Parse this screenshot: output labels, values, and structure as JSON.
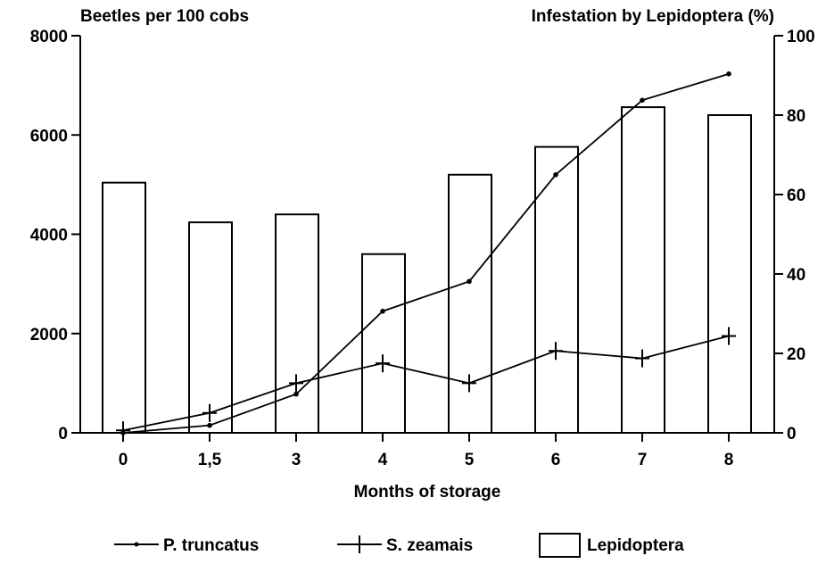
{
  "chart_data": {
    "type": "bar+line",
    "categories": [
      "0",
      "1,5",
      "3",
      "4",
      "5",
      "6",
      "7",
      "8"
    ],
    "xlabel": "Months of storage",
    "ylabel_left": "Beetles per 100 cobs",
    "ylabel_right": "Infestation by Lepidoptera (%)",
    "ylim_left": [
      0,
      8000
    ],
    "ylim_right": [
      0,
      100
    ],
    "yticks_left": [
      "0",
      "2000",
      "4000",
      "6000",
      "8000"
    ],
    "yticks_right": [
      "0",
      "20",
      "40",
      "60",
      "80",
      "100"
    ],
    "grid": false,
    "legend_position": "bottom",
    "series": [
      {
        "name": "P. truncatus",
        "type": "line",
        "axis": "left",
        "marker": "dot",
        "values": [
          0,
          150,
          780,
          2450,
          3050,
          5200,
          6700,
          7230
        ]
      },
      {
        "name": "S. zeamais",
        "type": "line",
        "axis": "left",
        "marker": "plus",
        "values": [
          50,
          400,
          1000,
          1400,
          1000,
          1650,
          1500,
          1950
        ]
      },
      {
        "name": "Lepidoptera",
        "type": "bar",
        "axis": "right",
        "values": [
          63,
          53,
          55,
          45,
          65,
          72,
          82,
          80
        ]
      }
    ]
  }
}
